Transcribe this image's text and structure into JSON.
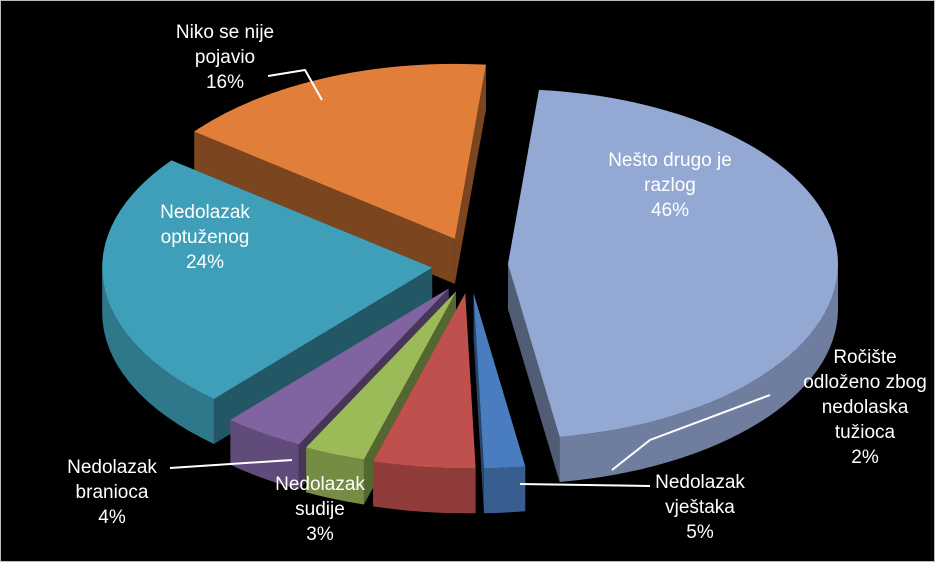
{
  "chart_data": {
    "type": "pie",
    "categories": [
      "Nešto drugo je razlog",
      "Ročište odloženo zbog nedolaska tužioca",
      "Nedolazak vještaka",
      "Nedolazak sudije",
      "Nedolazak branioca",
      "Nedolazak optuženog",
      "Niko se nije pojavio"
    ],
    "values": [
      46,
      2,
      5,
      3,
      4,
      24,
      16
    ],
    "value_labels": [
      "46%",
      "2%",
      "5%",
      "3%",
      "4%",
      "24%",
      "16%"
    ],
    "colors": [
      "#94a8d4",
      "#4a7dc0",
      "#c0504d",
      "#9bbb59",
      "#8064a2",
      "#3f9fb8",
      "#e07e3a"
    ]
  }
}
